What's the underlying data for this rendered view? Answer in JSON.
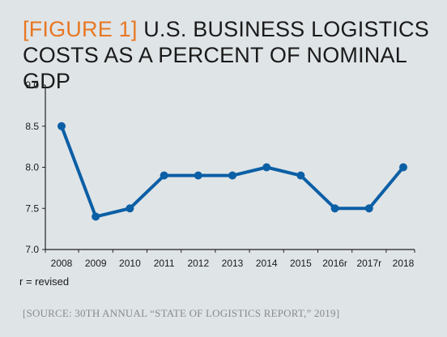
{
  "header": {
    "figure_label": "[FIGURE 1]",
    "title_line1": "U.S. BUSINESS LOGISTICS",
    "title_line2": "COSTS AS A PERCENT OF NOMINAL GDP"
  },
  "footnote": "r = revised",
  "source": "[SOURCE: 30TH ANNUAL “STATE OF LOGISTICS REPORT,” 2019]",
  "colors": {
    "accent": "#e87722",
    "series": "#0b5fa5",
    "background": "#dfe4e7",
    "source_text": "#8a8a8a"
  },
  "chart_data": {
    "type": "line",
    "title": "U.S. BUSINESS LOGISTICS COSTS AS A PERCENT OF NOMINAL GDP",
    "categories": [
      "2008",
      "2009",
      "2010",
      "2011",
      "2012",
      "2013",
      "2014",
      "2015",
      "2016r",
      "2017r",
      "2018"
    ],
    "values": [
      8.5,
      7.4,
      7.5,
      7.9,
      7.9,
      7.9,
      8.0,
      7.9,
      7.5,
      7.5,
      8.0
    ],
    "y_ticks": [
      "7.0",
      "7.5",
      "8.0",
      "8.5",
      "9.0"
    ],
    "ylim": [
      7.0,
      9.0
    ],
    "xlabel": "",
    "ylabel": "",
    "grid": false,
    "legend": "none"
  }
}
